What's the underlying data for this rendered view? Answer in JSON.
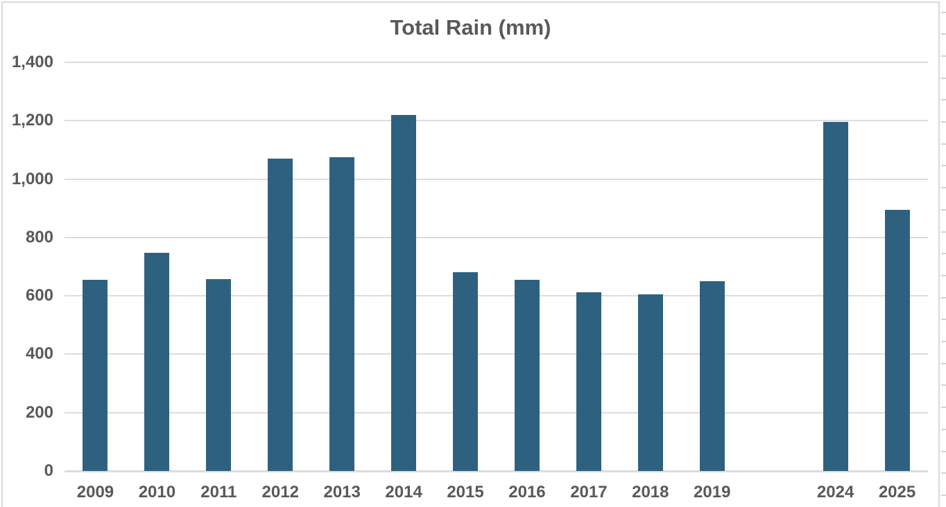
{
  "window": {
    "background_color": "#ffffff",
    "card_border_color": "#d9d9d9"
  },
  "chart_data": {
    "type": "bar",
    "title": "Total Rain (mm)",
    "categories": [
      "2009",
      "2010",
      "2011",
      "2012",
      "2013",
      "2014",
      "2015",
      "2016",
      "2017",
      "2018",
      "2019",
      "",
      "2024",
      "2025"
    ],
    "values": [
      655,
      747,
      658,
      1071,
      1074,
      1219,
      680,
      654,
      612,
      605,
      650,
      null,
      1197,
      894
    ],
    "xlabel": "",
    "ylabel": "",
    "ylim": [
      0,
      1400
    ],
    "y_tick_interval": 200,
    "y_tick_labels": [
      "1,400",
      "1,200",
      "1,000",
      "800",
      "600",
      "400",
      "200",
      "0"
    ],
    "y_tick_values": [
      1400,
      1200,
      1000,
      800,
      600,
      400,
      200,
      0
    ],
    "grid": true,
    "legend": false,
    "bar_color": "#2e6180",
    "gridline_color": "#dcdcdc",
    "axis_label_color": "#595959",
    "title_color": "#595959"
  }
}
